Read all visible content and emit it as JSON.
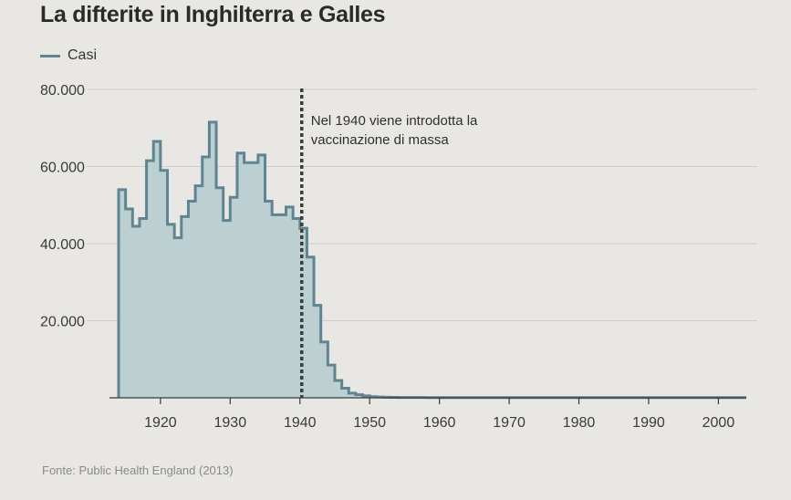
{
  "chart_data": {
    "type": "area",
    "title": "La difterite in Inghilterra e Galles",
    "legend": [
      "Casi"
    ],
    "series": [
      {
        "name": "Casi",
        "x": [
          1914,
          1915,
          1916,
          1917,
          1918,
          1919,
          1920,
          1921,
          1922,
          1923,
          1924,
          1925,
          1926,
          1927,
          1928,
          1929,
          1930,
          1931,
          1932,
          1933,
          1934,
          1935,
          1936,
          1937,
          1938,
          1939,
          1940,
          1941,
          1942,
          1943,
          1944,
          1945,
          1946,
          1947,
          1948,
          1949,
          1950,
          1951,
          1952,
          1953,
          1954,
          1955,
          1956,
          1957,
          1958,
          1959,
          1960,
          1961,
          1962,
          1963,
          1964,
          1965,
          1966,
          1967,
          1968,
          1969,
          1970,
          1971,
          1972,
          1973,
          1974,
          1975,
          1976,
          1977,
          1978,
          1979,
          1980,
          1981,
          1982,
          1983,
          1984,
          1985,
          1986,
          1987,
          1988,
          1989,
          1990,
          1991,
          1992,
          1993,
          1994,
          1995,
          1996,
          1997,
          1998,
          1999,
          2000,
          2001,
          2002,
          2003
        ],
        "values": [
          54000,
          49000,
          44500,
          46500,
          61500,
          66500,
          59000,
          45000,
          41500,
          47000,
          51000,
          55000,
          62500,
          71500,
          54500,
          46000,
          52000,
          63500,
          61000,
          61000,
          63000,
          51000,
          47500,
          47500,
          49500,
          46500,
          44000,
          36500,
          24000,
          14500,
          8500,
          4500,
          2500,
          1200,
          800,
          500,
          300,
          200,
          150,
          120,
          100,
          100,
          80,
          80,
          70,
          70,
          60,
          60,
          60,
          60,
          60,
          60,
          60,
          60,
          60,
          60,
          60,
          60,
          60,
          60,
          60,
          60,
          60,
          60,
          60,
          60,
          60,
          60,
          60,
          60,
          60,
          60,
          60,
          60,
          60,
          60,
          60,
          60,
          60,
          60,
          60,
          60,
          60,
          60,
          60,
          60,
          60,
          60,
          60,
          60
        ]
      }
    ],
    "xlim": [
      1914,
      2004
    ],
    "ylim": [
      0,
      80000
    ],
    "xticks": [
      1920,
      1930,
      1940,
      1950,
      1960,
      1970,
      1980,
      1990,
      2000
    ],
    "xtick_labels": [
      "1920",
      "1930",
      "1940",
      "1950",
      "1960",
      "1970",
      "1980",
      "1990",
      "2000"
    ],
    "yticks": [
      20000,
      40000,
      60000,
      80000
    ],
    "ytick_labels": [
      "20.000",
      "40.000",
      "60.000",
      "80.000"
    ],
    "grid": true,
    "annotation": {
      "x": 1940,
      "lines": [
        "Nel 1940 viene introdotta la",
        "vaccinazione di massa"
      ]
    },
    "source": "Fonte: Public Health England (2013)",
    "colors": {
      "line": "#5e8591",
      "fill": "#bccfd1",
      "marker": "#3d3d3d"
    }
  }
}
